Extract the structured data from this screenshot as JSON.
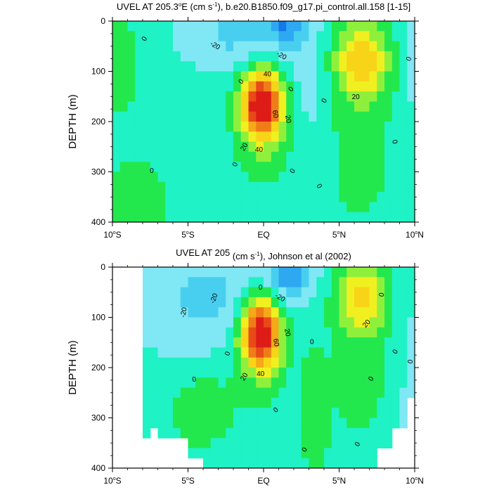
{
  "colors": {
    "background": "#ffffff",
    "contour_line": "#000000",
    "fill_levels": [
      {
        "min": -40,
        "max": -30,
        "color": "#1478e8"
      },
      {
        "min": -30,
        "max": -20,
        "color": "#2fa8f2"
      },
      {
        "min": -20,
        "max": -10,
        "color": "#48cff0"
      },
      {
        "min": -10,
        "max": 0,
        "color": "#7fe8f4"
      },
      {
        "min": 0,
        "max": 10,
        "color": "#1ff2c4"
      },
      {
        "min": 10,
        "max": 20,
        "color": "#22e84e"
      },
      {
        "min": 20,
        "max": 30,
        "color": "#8ff03c"
      },
      {
        "min": 30,
        "max": 40,
        "color": "#f0f020"
      },
      {
        "min": 40,
        "max": 50,
        "color": "#f8d418"
      },
      {
        "min": 50,
        "max": 60,
        "color": "#f6a818"
      },
      {
        "min": 60,
        "max": 70,
        "color": "#f07c18"
      },
      {
        "min": 70,
        "max": 80,
        "color": "#e84a18"
      },
      {
        "min": 80,
        "max": 100,
        "color": "#dd1c18"
      }
    ]
  },
  "chart_data": [
    {
      "type": "contour",
      "title": {
        "prefix": "UVEL AT 205.3",
        "deg": "o",
        "mid": "E (cm s",
        "exp": "-1",
        "suffix": "), b.e20.B1850.f09_g17.pi_control.all.158 [1-15]"
      },
      "ylabel": "DEPTH (m)",
      "xlim": [
        -10,
        10
      ],
      "ylim": [
        0,
        400
      ],
      "y_inverted": true,
      "x_ticks": [
        {
          "v": -10,
          "num": "10",
          "deg": "o",
          "hem": "S"
        },
        {
          "v": -5,
          "num": "5",
          "deg": "o",
          "hem": "S"
        },
        {
          "v": 0,
          "num": "EQ",
          "deg": "",
          "hem": ""
        },
        {
          "v": 5,
          "num": "5",
          "deg": "o",
          "hem": "N"
        },
        {
          "v": 10,
          "num": "10",
          "deg": "o",
          "hem": "N"
        }
      ],
      "y_ticks": [
        0,
        100,
        200,
        300,
        400
      ],
      "cells": {
        "lat_range": [
          -10,
          10
        ],
        "lat_step": 0.5,
        "depth_range": [
          0,
          400
        ],
        "depth_step": 20
      },
      "data_extent": {
        "lat_min": -10,
        "lat_max": 10
      },
      "field": [
        {
          "amp": 4,
          "lat": -7.5,
          "lat_sd": 6,
          "depth": 250,
          "depth_sd": 170
        },
        {
          "amp": 8,
          "lat": -9.5,
          "lat_sd": 1.6,
          "depth": 110,
          "depth_sd": 80
        },
        {
          "amp": 12,
          "lat": -8.5,
          "lat_sd": 2.0,
          "depth": 400,
          "depth_sd": 100
        },
        {
          "amp": 90,
          "lat": -0.1,
          "lat_sd": 0.9,
          "depth": 165,
          "depth_sd": 45
        },
        {
          "amp": 14,
          "lat": 0,
          "lat_sd": 1.6,
          "depth": 230,
          "depth_sd": 90
        },
        {
          "amp": -28,
          "lat": 1.5,
          "lat_sd": 1.0,
          "depth": 0,
          "depth_sd": 35
        },
        {
          "amp": -14,
          "lat": -1.8,
          "lat_sd": 2.2,
          "depth": 30,
          "depth_sd": 45
        },
        {
          "amp": -8,
          "lat": 3.0,
          "lat_sd": 1.0,
          "depth": 110,
          "depth_sd": 70
        },
        {
          "amp": 40,
          "lat": 6.5,
          "lat_sd": 1.3,
          "depth": 75,
          "depth_sd": 55
        },
        {
          "amp": 14,
          "lat": 6.3,
          "lat_sd": 2.2,
          "depth": 250,
          "depth_sd": 160
        },
        {
          "amp": 10,
          "lat": -10,
          "lat_sd": 1.0,
          "depth": 40,
          "depth_sd": 40
        },
        {
          "amp": -6,
          "lat": 9.8,
          "lat_sd": 0.6,
          "depth": 60,
          "depth_sd": 120
        },
        {
          "amp": -6,
          "lat": 3.5,
          "lat_sd": 0.8,
          "depth": 300,
          "depth_sd": 120
        }
      ],
      "contour_labels": [
        {
          "text": "0",
          "lat": -7.9,
          "depth": 35,
          "rot": -60
        },
        {
          "text": "-20",
          "lat": -3.2,
          "depth": 48,
          "rot": 30
        },
        {
          "text": "-20",
          "lat": 1.2,
          "depth": 68,
          "rot": 30
        },
        {
          "text": "40",
          "lat": 0.25,
          "depth": 105,
          "rot": 0
        },
        {
          "text": "0",
          "lat": -1.5,
          "depth": 120,
          "rot": -50
        },
        {
          "text": "0",
          "lat": 1.8,
          "depth": 135,
          "rot": -50
        },
        {
          "text": "60",
          "lat": 0.8,
          "depth": 185,
          "rot": 80
        },
        {
          "text": "20",
          "lat": 1.65,
          "depth": 195,
          "rot": 80
        },
        {
          "text": "20",
          "lat": -1.3,
          "depth": 250,
          "rot": -60
        },
        {
          "text": "40",
          "lat": -0.3,
          "depth": 255,
          "rot": 0
        },
        {
          "text": "0",
          "lat": -1.9,
          "depth": 285,
          "rot": -70
        },
        {
          "text": "0",
          "lat": 1.9,
          "depth": 298,
          "rot": -60
        },
        {
          "text": "0",
          "lat": -7.4,
          "depth": 297,
          "rot": 0
        },
        {
          "text": "0",
          "lat": 3.7,
          "depth": 328,
          "rot": 60
        },
        {
          "text": "0",
          "lat": 4.0,
          "depth": 158,
          "rot": -60
        },
        {
          "text": "20",
          "lat": 6.1,
          "depth": 150,
          "rot": 0
        },
        {
          "text": "0",
          "lat": 9.6,
          "depth": 75,
          "rot": -70
        },
        {
          "text": "0",
          "lat": 8.7,
          "depth": 240,
          "rot": 80
        }
      ]
    },
    {
      "type": "contour",
      "title": {
        "prefix": "UVEL AT 205",
        "deg": "",
        "mid": " (cm s",
        "exp": "-1",
        "suffix": "), Johnson et al (2002)"
      },
      "ylabel": "DEPTH (m)",
      "xlim": [
        -10,
        10
      ],
      "ylim": [
        0,
        400
      ],
      "y_inverted": true,
      "x_ticks": [
        {
          "v": -10,
          "num": "10",
          "deg": "o",
          "hem": "S"
        },
        {
          "v": -5,
          "num": "5",
          "deg": "o",
          "hem": "S"
        },
        {
          "v": 0,
          "num": "EQ",
          "deg": "",
          "hem": ""
        },
        {
          "v": 5,
          "num": "5",
          "deg": "o",
          "hem": "N"
        },
        {
          "v": 10,
          "num": "10",
          "deg": "o",
          "hem": "N"
        }
      ],
      "y_ticks": [
        0,
        100,
        200,
        300,
        400
      ],
      "cells": {
        "lat_range": [
          -8,
          10
        ],
        "lat_step": 0.5,
        "depth_range": [
          0,
          400
        ],
        "depth_step": 20
      },
      "data_extent": {
        "lat_min": -8,
        "lat_max": 9.8
      },
      "missing_bottom": [
        {
          "lat_min": -8,
          "lat_max": -7.5,
          "depth_max": 340
        },
        {
          "lat_min": -7.5,
          "lat_max": -6.8,
          "depth_max": 320
        },
        {
          "lat_min": -6.8,
          "lat_max": -5,
          "depth_max": 340
        },
        {
          "lat_min": -5,
          "lat_max": -4.2,
          "depth_max": 380
        },
        {
          "lat_min": -4.2,
          "lat_max": -3.5,
          "depth_max": 395
        },
        {
          "lat_min": 7.5,
          "lat_max": 8.5,
          "depth_max": 360
        },
        {
          "lat_min": 8.5,
          "lat_max": 9.3,
          "depth_max": 320
        },
        {
          "lat_min": 9.3,
          "lat_max": 9.8,
          "depth_max": 260
        }
      ],
      "field": [
        {
          "amp": 3,
          "lat": -6,
          "lat_sd": 6,
          "depth": 300,
          "depth_sd": 150
        },
        {
          "amp": -14,
          "lat": -3.5,
          "lat_sd": 2.8,
          "depth": 70,
          "depth_sd": 70
        },
        {
          "amp": 92,
          "lat": -0.2,
          "lat_sd": 0.9,
          "depth": 130,
          "depth_sd": 48
        },
        {
          "amp": 10,
          "lat": 0,
          "lat_sd": 1.8,
          "depth": 200,
          "depth_sd": 90
        },
        {
          "amp": -30,
          "lat": 1.8,
          "lat_sd": 1.0,
          "depth": 10,
          "depth_sd": 40
        },
        {
          "amp": 35,
          "lat": 6.5,
          "lat_sd": 1.2,
          "depth": 55,
          "depth_sd": 55
        },
        {
          "amp": 12,
          "lat": 6.5,
          "lat_sd": 2.2,
          "depth": 220,
          "depth_sd": 160
        },
        {
          "amp": 14,
          "lat": -4.2,
          "lat_sd": 1.5,
          "depth": 290,
          "depth_sd": 60
        },
        {
          "amp": 14,
          "lat": 3.2,
          "lat_sd": 0.7,
          "depth": 330,
          "depth_sd": 110
        },
        {
          "amp": -6,
          "lat": 2.2,
          "lat_sd": 0.6,
          "depth": 330,
          "depth_sd": 80
        },
        {
          "amp": -6,
          "lat": 9.5,
          "lat_sd": 0.7,
          "depth": 250,
          "depth_sd": 160
        }
      ],
      "contour_labels": [
        {
          "text": "-20",
          "lat": -5.3,
          "depth": 90,
          "rot": -80
        },
        {
          "text": "-20",
          "lat": -3.3,
          "depth": 62,
          "rot": -70
        },
        {
          "text": "0",
          "lat": -0.2,
          "depth": 40,
          "rot": 0
        },
        {
          "text": "-20",
          "lat": 1.1,
          "depth": 60,
          "rot": 30
        },
        {
          "text": "20",
          "lat": 1.6,
          "depth": 130,
          "rot": 80
        },
        {
          "text": "60",
          "lat": 0.85,
          "depth": 150,
          "rot": 80
        },
        {
          "text": "0",
          "lat": 3.2,
          "depth": 148,
          "rot": 0
        },
        {
          "text": "0",
          "lat": -2.4,
          "depth": 172,
          "rot": -70
        },
        {
          "text": "40",
          "lat": -0.2,
          "depth": 212,
          "rot": 0
        },
        {
          "text": "20",
          "lat": -1.3,
          "depth": 218,
          "rot": -60
        },
        {
          "text": "0",
          "lat": -4.6,
          "depth": 223,
          "rot": -10
        },
        {
          "text": "20",
          "lat": 6.8,
          "depth": 112,
          "rot": -50
        },
        {
          "text": "0",
          "lat": 7.8,
          "depth": 55,
          "rot": -80
        },
        {
          "text": "0",
          "lat": 8.7,
          "depth": 168,
          "rot": -60
        },
        {
          "text": "0",
          "lat": 9.7,
          "depth": 188,
          "rot": -80
        },
        {
          "text": "0",
          "lat": 7.1,
          "depth": 222,
          "rot": -60
        },
        {
          "text": "0",
          "lat": 0.8,
          "depth": 284,
          "rot": -40
        },
        {
          "text": "0",
          "lat": 2.7,
          "depth": 363,
          "rot": -60
        },
        {
          "text": "0",
          "lat": 6.2,
          "depth": 352,
          "rot": -60
        }
      ]
    }
  ]
}
